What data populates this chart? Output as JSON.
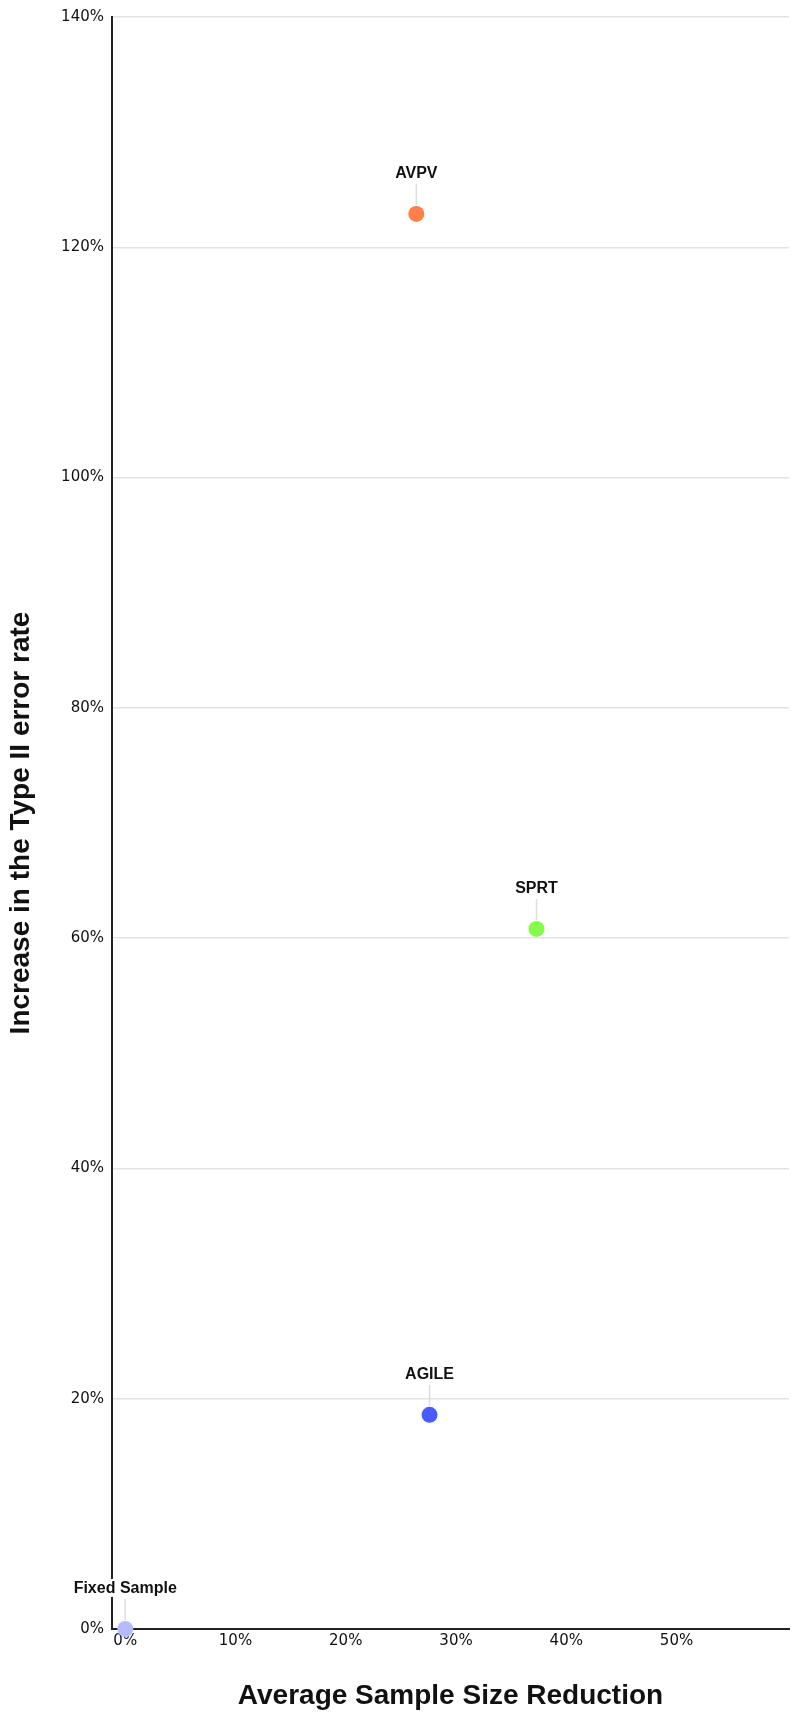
{
  "chart_data": {
    "type": "scatter",
    "xlabel": "Average Sample Size Reduction",
    "ylabel": "Increase in the Type II error rate",
    "xlim": [
      -1.2,
      60.2
    ],
    "xticks": [
      {
        "value": 0,
        "label": "0%"
      },
      {
        "value": 10,
        "label": "10%"
      },
      {
        "value": 20,
        "label": "20%"
      },
      {
        "value": 30,
        "label": "30%"
      },
      {
        "value": 40,
        "label": "40%"
      },
      {
        "value": 50,
        "label": "50%"
      }
    ],
    "ylim": [
      0,
      140
    ],
    "yticks": [
      {
        "value": 0,
        "label": "0%"
      },
      {
        "value": 20,
        "label": "20%"
      },
      {
        "value": 40,
        "label": "40%"
      },
      {
        "value": 60,
        "label": "60%"
      },
      {
        "value": 80,
        "label": "80%"
      },
      {
        "value": 100,
        "label": "100%"
      },
      {
        "value": 120,
        "label": "120%"
      },
      {
        "value": 140,
        "label": "140%"
      }
    ],
    "grid": "y",
    "legend": false,
    "marker": "circle",
    "series": [
      {
        "name": "AVPV",
        "color": "#ff7f4a",
        "x": [
          26.4
        ],
        "values": [
          122.9
        ]
      },
      {
        "name": "SPRT",
        "color": "#83ff4a",
        "x": [
          37.3
        ],
        "values": [
          60.8
        ]
      },
      {
        "name": "AGILE",
        "color": "#4a5cff",
        "x": [
          27.6
        ],
        "values": [
          18.6
        ]
      },
      {
        "name": "Fixed Sample",
        "color": "#b4bcff",
        "x": [
          0
        ],
        "values": [
          0
        ]
      }
    ]
  }
}
